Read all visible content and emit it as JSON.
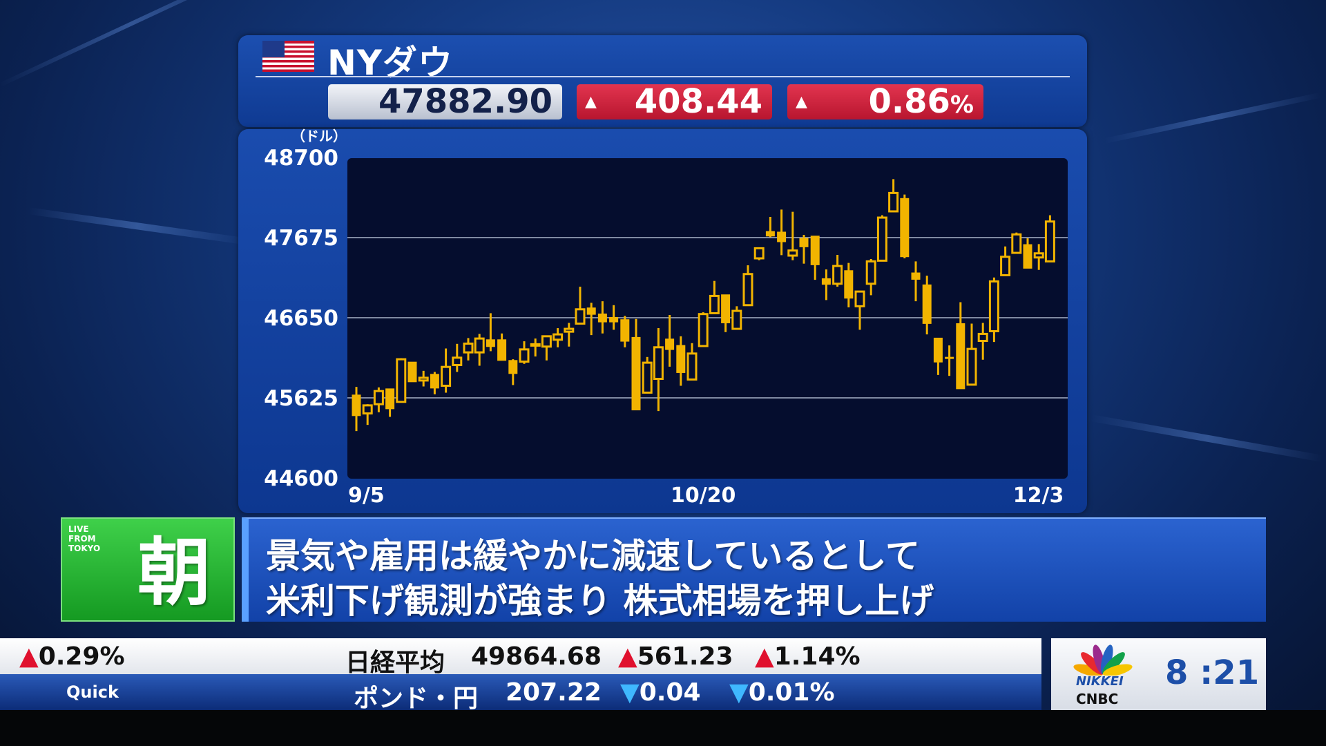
{
  "header": {
    "flag_icon": "us-flag-icon",
    "title": "NYダウ",
    "price": "47882.90",
    "change": "408.44",
    "change_pct": "0.86",
    "pct_sign": "%",
    "up_symbol": "▲"
  },
  "colors": {
    "candle": "#f2b400",
    "plot_bg": "#050d2e",
    "up_box": "#d2223f",
    "accent_blue": "#1d4fa8"
  },
  "chart_data": {
    "type": "candlestick",
    "ylabel": "（ドル）",
    "ylim": [
      44600,
      48700
    ],
    "yticks": [
      "48700",
      "47675",
      "46650",
      "45625",
      "44600"
    ],
    "grid": true,
    "xticks": [
      {
        "label": "9/5",
        "index": 0
      },
      {
        "label": "10/20",
        "index": 31
      },
      {
        "label": "12/3",
        "index": 62
      }
    ],
    "candles": [
      [
        45662,
        45765,
        45200,
        45397
      ],
      [
        45426,
        45544,
        45279,
        45529
      ],
      [
        45544,
        45759,
        45441,
        45712
      ],
      [
        45741,
        45741,
        45382,
        45485
      ],
      [
        45574,
        46133,
        45574,
        46119
      ],
      [
        46083,
        46083,
        45830,
        45830
      ],
      [
        45847,
        45971,
        45771,
        45882
      ],
      [
        45927,
        45957,
        45671,
        45750
      ],
      [
        45780,
        46257,
        45691,
        46021
      ],
      [
        46045,
        46316,
        45957,
        46139
      ],
      [
        46207,
        46390,
        46104,
        46319
      ],
      [
        46207,
        46443,
        46036,
        46384
      ],
      [
        46369,
        46708,
        46222,
        46281
      ],
      [
        46369,
        46449,
        46104,
        46104
      ],
      [
        46104,
        46119,
        45789,
        45936
      ],
      [
        46089,
        46349,
        46060,
        46245
      ],
      [
        46305,
        46384,
        46154,
        46311
      ],
      [
        46281,
        46419,
        46104,
        46413
      ],
      [
        46369,
        46517,
        46272,
        46437
      ],
      [
        46472,
        46584,
        46281,
        46508
      ],
      [
        46575,
        47047,
        46575,
        46758
      ],
      [
        46776,
        46841,
        46428,
        46693
      ],
      [
        46699,
        46861,
        46449,
        46596
      ],
      [
        46655,
        46811,
        46496,
        46596
      ],
      [
        46626,
        46673,
        46272,
        46349
      ],
      [
        46399,
        46634,
        45470,
        45470
      ],
      [
        45692,
        46148,
        45692,
        46075
      ],
      [
        45868,
        46517,
        45456,
        46272
      ],
      [
        46378,
        46685,
        46024,
        46243
      ],
      [
        46296,
        46413,
        45780,
        45948
      ],
      [
        45860,
        46325,
        45860,
        46192
      ],
      [
        46288,
        46720,
        46288,
        46697
      ],
      [
        46708,
        47121,
        46708,
        46929
      ],
      [
        46944,
        46944,
        46466,
        46584
      ],
      [
        46508,
        46797,
        46496,
        46738
      ],
      [
        46811,
        47321,
        46811,
        47209
      ],
      [
        47410,
        47539,
        47386,
        47539
      ],
      [
        47754,
        47940,
        47681,
        47695
      ],
      [
        47746,
        48034,
        47451,
        47622
      ],
      [
        47445,
        48005,
        47386,
        47510
      ],
      [
        47666,
        47710,
        47342,
        47557
      ],
      [
        47695,
        47695,
        47135,
        47327
      ],
      [
        47150,
        47268,
        46876,
        47077
      ],
      [
        47085,
        47454,
        47047,
        47312
      ],
      [
        47253,
        47351,
        46782,
        46900
      ],
      [
        46797,
        46985,
        46496,
        46985
      ],
      [
        47085,
        47401,
        46938,
        47371
      ],
      [
        47380,
        47961,
        47380,
        47931
      ],
      [
        48011,
        48423,
        48011,
        48246
      ],
      [
        48176,
        48226,
        47410,
        47430
      ],
      [
        47224,
        47371,
        46861,
        47141
      ],
      [
        47071,
        47188,
        46437,
        46576
      ],
      [
        46390,
        46390,
        45918,
        46083
      ],
      [
        46145,
        46296,
        45906,
        46142
      ],
      [
        46575,
        46849,
        45741,
        45741
      ],
      [
        45794,
        46575,
        45794,
        46251
      ],
      [
        46354,
        46584,
        46113,
        46443
      ],
      [
        46478,
        47165,
        46340,
        47115
      ],
      [
        47194,
        47562,
        47194,
        47430
      ],
      [
        47480,
        47740,
        47480,
        47716
      ],
      [
        47586,
        47666,
        47283,
        47283
      ],
      [
        47421,
        47592,
        47262,
        47474
      ],
      [
        47371,
        47961,
        47371,
        47881
      ]
    ],
    "candle_format": [
      "open",
      "high",
      "low",
      "close"
    ]
  },
  "caption": {
    "badge_small": "LIVE FROM TOKYO",
    "badge_big": "朝",
    "line1": "景気や雇用は緩やかに減速しているとして",
    "line2": "米利下げ観測が強まり 株式相場を押し上げ"
  },
  "ticker": {
    "top": {
      "prev_pct": "0.29%",
      "name": "日経平均",
      "value": "49864.68",
      "change": "561.23",
      "pct": "1.14%"
    },
    "bottom": {
      "source": "Quick",
      "name": "ポンド・円",
      "value": "207.22",
      "change": "0.04",
      "pct": "0.01%"
    },
    "up_symbol": "▲",
    "down_symbol": "▼"
  },
  "logo": {
    "line1": "NIKKEI",
    "line2": "CNBC"
  },
  "clock": "8 :21"
}
